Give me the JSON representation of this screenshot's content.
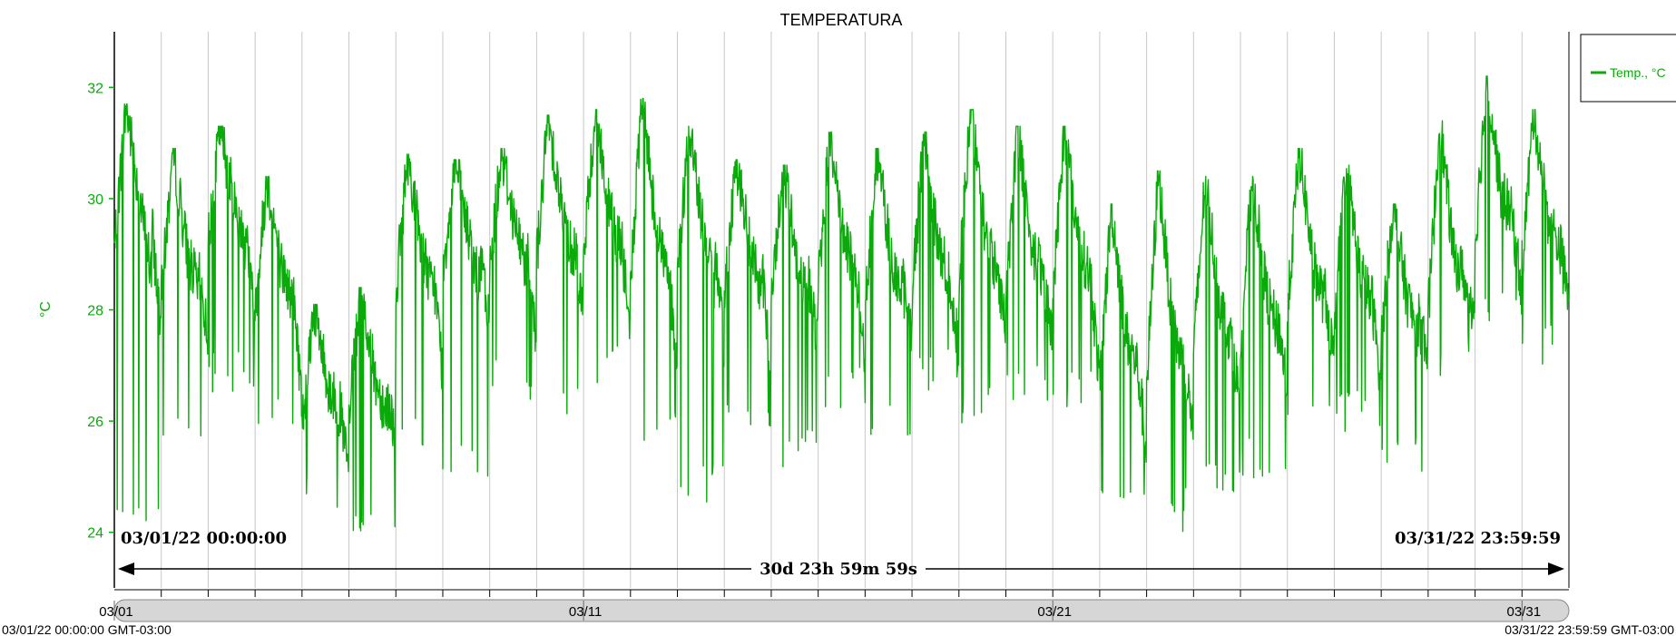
{
  "colors": {
    "series": "#0aaa0a",
    "grid": "#c8c8c8",
    "axis": "#000000",
    "scrollbar": "#d6d6d6"
  },
  "chart_data": {
    "type": "line",
    "title": "TEMPERATURA",
    "ylabel": "°C",
    "xlabel": "",
    "ylim": [
      23,
      33
    ],
    "y_ticks": [
      "24",
      "26",
      "28",
      "30",
      "32"
    ],
    "xlim": [
      "2022-03-01 00:00:00",
      "2022-04-01 00:00:00"
    ],
    "x_ticks": [
      {
        "date": "2022-03-01",
        "label": "03/01"
      },
      {
        "date": "2022-03-11",
        "label": "03/11"
      },
      {
        "date": "2022-03-21",
        "label": "03/21"
      },
      {
        "date": "2022-03-31",
        "label": "03/31"
      }
    ],
    "grid": true,
    "legend": {
      "position": "top-right",
      "entries": [
        "Temp., °C"
      ]
    },
    "series": [
      {
        "name": "Temp., °C",
        "x": [
          "2022-03-01",
          "2022-03-02",
          "2022-03-03",
          "2022-03-04",
          "2022-03-05",
          "2022-03-06",
          "2022-03-07",
          "2022-03-08",
          "2022-03-09",
          "2022-03-10",
          "2022-03-11",
          "2022-03-12",
          "2022-03-13",
          "2022-03-14",
          "2022-03-15",
          "2022-03-16",
          "2022-03-17",
          "2022-03-18",
          "2022-03-19",
          "2022-03-20",
          "2022-03-21",
          "2022-03-22",
          "2022-03-23",
          "2022-03-24",
          "2022-03-25",
          "2022-03-26",
          "2022-03-27",
          "2022-03-28",
          "2022-03-29",
          "2022-03-30",
          "2022-03-31"
        ],
        "min": [
          24.1,
          25.7,
          26.5,
          25.7,
          24.4,
          23.7,
          25.3,
          25.0,
          26.3,
          25.9,
          26.6,
          25.6,
          24.5,
          25.6,
          25.1,
          26.2,
          25.6,
          26.5,
          25.9,
          26.3,
          26.2,
          24.6,
          24.0,
          24.7,
          24.9,
          25.5,
          25.8,
          25.1,
          26.8,
          27.8,
          27.0
        ],
        "max": [
          31.7,
          30.9,
          31.3,
          30.4,
          28.1,
          28.4,
          30.8,
          30.7,
          30.9,
          31.5,
          31.6,
          31.8,
          31.3,
          30.7,
          30.6,
          31.2,
          30.9,
          31.2,
          31.6,
          31.3,
          31.3,
          29.9,
          30.5,
          30.4,
          30.4,
          30.9,
          30.6,
          29.9,
          31.4,
          32.2,
          31.6
        ],
        "mean": [
          29.5,
          28.6,
          29.6,
          28.4,
          26.3,
          26.4,
          28.7,
          29.0,
          29.1,
          29.3,
          29.3,
          28.9,
          29.0,
          28.7,
          28.5,
          28.8,
          28.5,
          28.6,
          28.9,
          28.6,
          28.7,
          27.0,
          27.0,
          27.6,
          27.8,
          28.3,
          28.2,
          27.8,
          28.3,
          29.6,
          29.2
        ]
      }
    ]
  },
  "range": {
    "start_label": "03/01/22 00:00:00",
    "end_label": "03/31/22 23:59:59",
    "duration_label": "30d 23h 59m 59s"
  },
  "footer": {
    "start": "03/01/22 00:00:00 GMT-03:00",
    "end": "03/31/22 23:59:59 GMT-03:00"
  }
}
